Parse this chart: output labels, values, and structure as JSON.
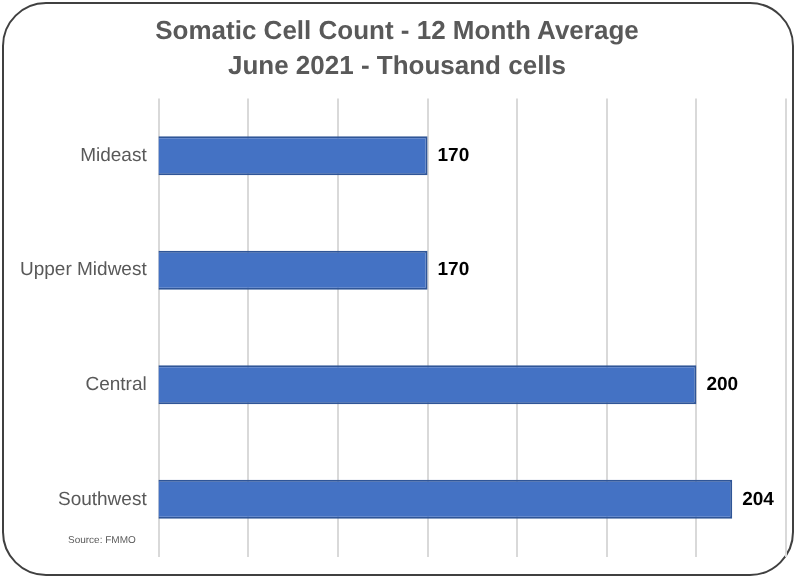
{
  "chart_data": {
    "type": "bar",
    "orientation": "horizontal",
    "title": "Somatic Cell Count - 12 Month Average",
    "subtitle": "June 2021 - Thousand cells",
    "categories": [
      "Mideast",
      "Upper Midwest",
      "Central",
      "Southwest"
    ],
    "values": [
      170,
      170,
      200,
      204
    ],
    "color": "#4472c4",
    "xlim": [
      140,
      210
    ],
    "xticks": [
      {
        "value": 140,
        "label": null
      },
      {
        "value": 150,
        "label": null
      },
      {
        "value": 160,
        "label": null
      },
      {
        "value": 170,
        "label": null
      },
      {
        "value": 180,
        "label": null
      },
      {
        "value": 190,
        "label": null
      },
      {
        "value": 200,
        "label": null
      },
      {
        "value": 210,
        "label": null
      }
    ],
    "grid": "x",
    "tick_labels": "y",
    "data_labels": true,
    "legend": false,
    "annotations": [
      "Source: FMMO"
    ]
  }
}
